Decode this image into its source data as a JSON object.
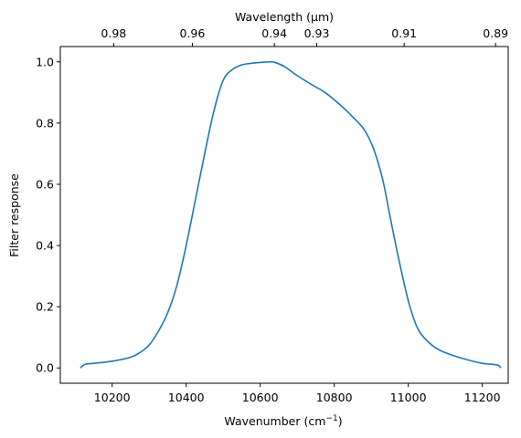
{
  "chart_data": {
    "type": "line",
    "xlabel_main": "Wavenumber (cm",
    "xlabel_sup": "−1",
    "xlabel_tail": ")",
    "ylabel": "Filter response",
    "top_axis_label": "Wavelength (μm)",
    "xlim": [
      10060,
      11270
    ],
    "ylim": [
      -0.05,
      1.05
    ],
    "grid": false,
    "x_ticks": [
      10200,
      10400,
      10600,
      10800,
      11000,
      11200
    ],
    "y_ticks": [
      0.0,
      0.2,
      0.4,
      0.6,
      0.8,
      1.0
    ],
    "y_tick_labels": [
      "0.0",
      "0.2",
      "0.4",
      "0.6",
      "0.8",
      "1.0"
    ],
    "top_ticks": [
      0.98,
      0.96,
      0.94,
      0.93,
      0.91,
      0.89
    ],
    "top_tick_labels": [
      "0.98",
      "0.96",
      "0.94",
      "0.93",
      "0.91",
      "0.89"
    ],
    "line_color": "#1f77b4",
    "series": [
      {
        "x": [
          10114,
          10127,
          10150,
          10200,
          10250,
          10275,
          10300,
          10325,
          10350,
          10375,
          10400,
          10425,
          10450,
          10475,
          10500,
          10525,
          10550,
          10575,
          10600,
          10625,
          10640,
          10665,
          10700,
          10740,
          10775,
          10820,
          10850,
          10880,
          10905,
          10930,
          10950,
          10970,
          11000,
          11025,
          11050,
          11075,
          11100,
          11150,
          11200,
          11240,
          11250
        ],
        "y": [
          0.0,
          0.012,
          0.015,
          0.022,
          0.035,
          0.05,
          0.075,
          0.12,
          0.18,
          0.27,
          0.4,
          0.55,
          0.7,
          0.84,
          0.94,
          0.975,
          0.99,
          0.995,
          0.998,
          1.0,
          0.998,
          0.985,
          0.955,
          0.925,
          0.9,
          0.855,
          0.82,
          0.78,
          0.72,
          0.62,
          0.5,
          0.38,
          0.22,
          0.13,
          0.09,
          0.065,
          0.05,
          0.03,
          0.015,
          0.01,
          0.0
        ]
      }
    ]
  }
}
